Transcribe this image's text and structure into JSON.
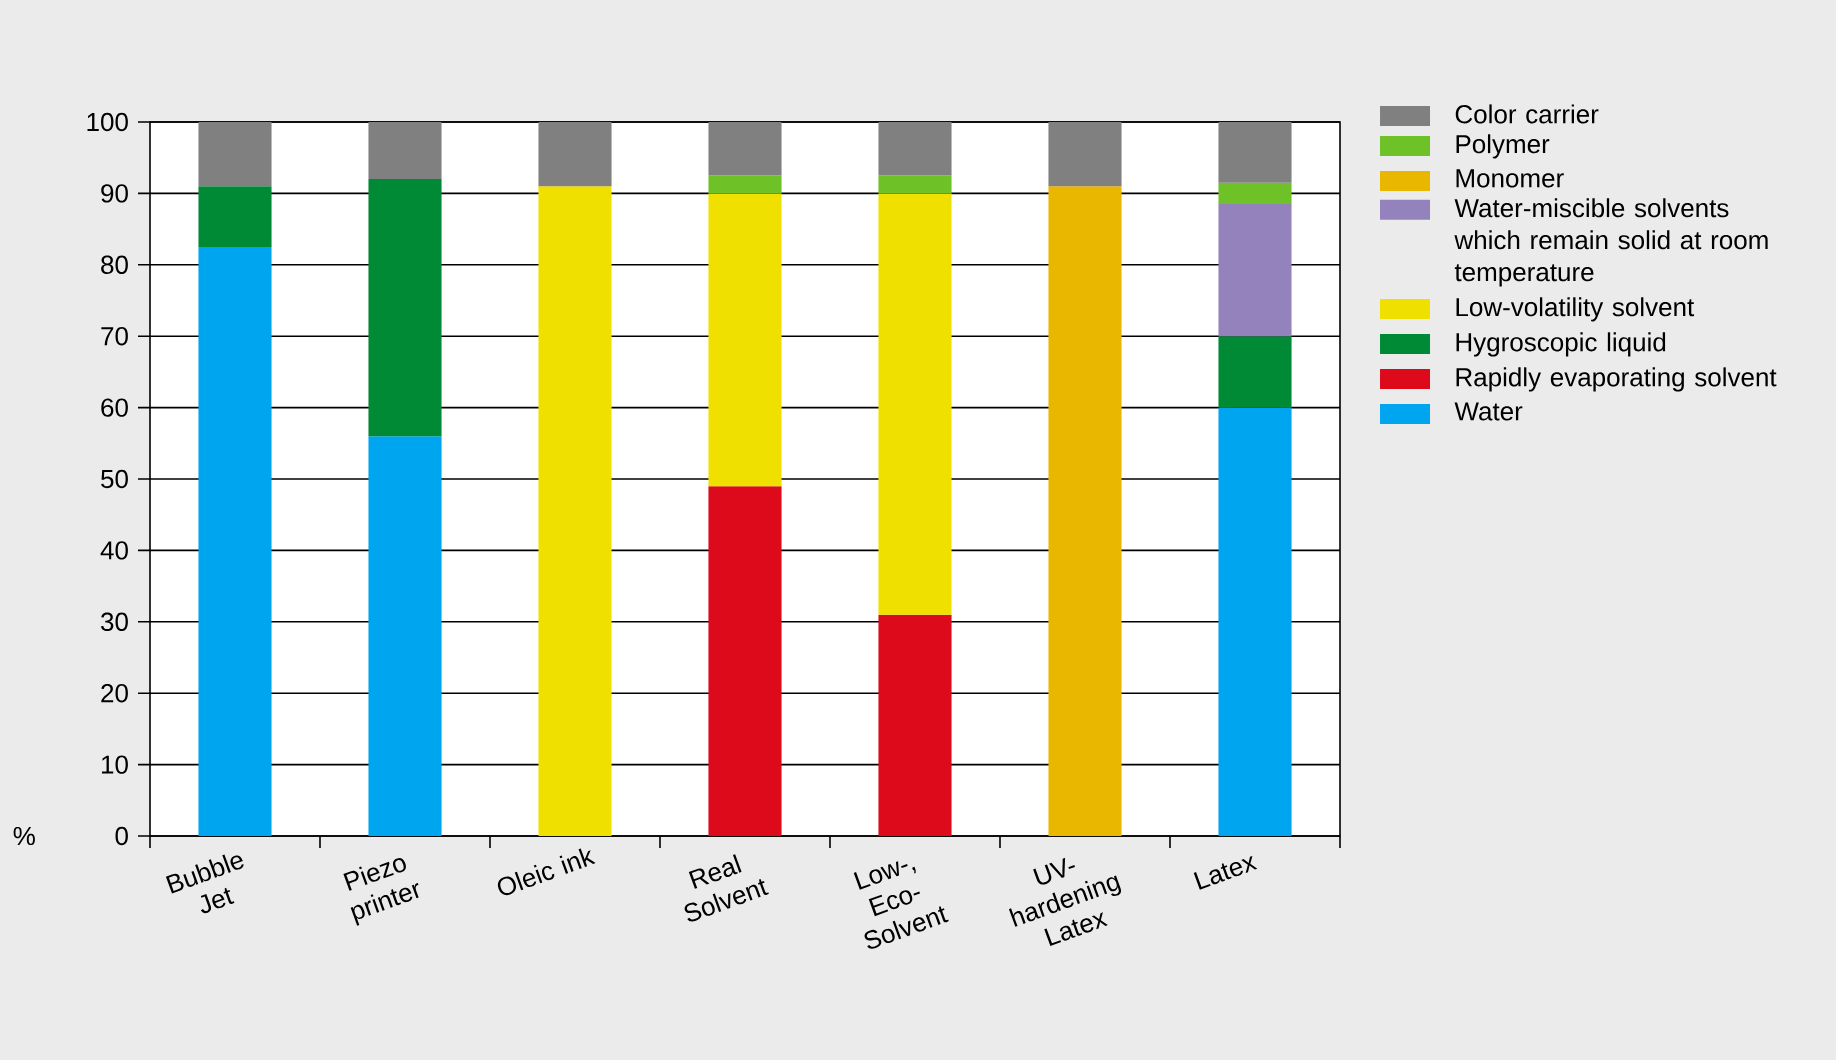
{
  "chart_data": {
    "type": "bar",
    "stacked": true,
    "ylabel": "%",
    "categories": [
      "Bubble Jet",
      "Piezo printer",
      "Oleic ink",
      "Real Solvent",
      "Low-, Eco-Solvent",
      "UV-hardening Latex",
      "Latex"
    ],
    "series": [
      {
        "name": "Water",
        "color": "#00a5ef",
        "values": [
          82.5,
          56,
          null,
          null,
          null,
          null,
          60
        ]
      },
      {
        "name": "Rapidly evaporating solvent",
        "color": "#dc0a1a",
        "values": [
          null,
          null,
          null,
          49,
          31,
          null,
          null
        ]
      },
      {
        "name": "Hygroscopic liquid",
        "color": "#008a35",
        "values": [
          8.5,
          36,
          null,
          null,
          null,
          null,
          10
        ]
      },
      {
        "name": "Low-volatility solvent",
        "color": "#f0e000",
        "values": [
          null,
          null,
          91,
          41,
          59,
          null,
          null
        ]
      },
      {
        "name": "Water-miscible solvents which remain solid at room temperature",
        "color": "#9482bc",
        "values": [
          null,
          null,
          null,
          null,
          null,
          null,
          18.5
        ]
      },
      {
        "name": "Monomer",
        "color": "#eab700",
        "values": [
          null,
          null,
          null,
          null,
          null,
          91,
          null
        ]
      },
      {
        "name": "Polymer",
        "color": "#6ec228",
        "values": [
          null,
          null,
          null,
          2.5,
          2.5,
          null,
          3
        ]
      },
      {
        "name": "Color carrier",
        "color": "#808080",
        "values": [
          9,
          8,
          9,
          7.5,
          7.5,
          9,
          8.5
        ]
      }
    ],
    "ylim": [
      0,
      100
    ],
    "yticks": [
      0,
      10,
      20,
      30,
      40,
      50,
      60,
      70,
      80,
      90,
      100
    ],
    "grid": "y",
    "legend": "right"
  }
}
